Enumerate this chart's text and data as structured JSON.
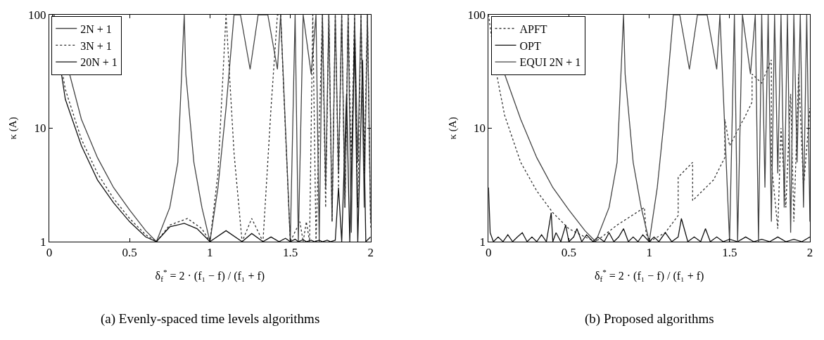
{
  "chart_data": [
    {
      "type": "line",
      "title": "(a) Evenly-spaced time levels algorithms",
      "xlabel": "δ$_{f}$$^{*}$ = 2 · (f₁ − f) / (f₁ + f)",
      "ylabel": "κ (A)",
      "xlim": [
        0,
        2
      ],
      "xticks": [
        0,
        0.5,
        1,
        1.5,
        2
      ],
      "ylim": [
        1,
        100
      ],
      "yticks": [
        1,
        10,
        100
      ],
      "log": "y",
      "legend": "top left",
      "series": [
        {
          "name": "2N + 1",
          "color": "#444444",
          "line_style": "solid",
          "x": [
            0.03,
            0.2,
            0.3,
            0.4,
            0.5,
            0.6,
            0.667,
            0.75,
            0.8,
            0.84,
            0.85,
            0.9,
            0.95,
            1.0,
            1.05,
            1.1,
            1.15,
            1.19,
            1.25,
            1.3,
            1.36,
            1.42,
            1.44,
            1.5,
            1.53,
            1.55,
            1.58,
            1.63,
            1.66,
            1.68,
            1.7,
            1.72,
            1.74,
            1.76,
            1.78,
            1.8,
            1.82,
            1.84,
            1.86,
            1.88,
            1.9,
            1.92,
            1.94,
            1.96,
            1.98,
            2.0
          ],
          "values": [
            100,
            12,
            5.5,
            3,
            1.9,
            1.25,
            1,
            2,
            5,
            100,
            30,
            5,
            2,
            1,
            3,
            15,
            100,
            100,
            33,
            100,
            100,
            33,
            100,
            1,
            100,
            1,
            100,
            30,
            100,
            1,
            100,
            3,
            100,
            1.5,
            100,
            4,
            100,
            2,
            100,
            1.2,
            100,
            5,
            100,
            2,
            100,
            1.5
          ]
        },
        {
          "name": "3N + 1",
          "color": "#333333",
          "line_style": "dotted",
          "x": [
            0.02,
            0.1,
            0.2,
            0.3,
            0.4,
            0.5,
            0.6,
            0.667,
            0.75,
            0.86,
            0.95,
            1.0,
            1.05,
            1.1,
            1.15,
            1.2,
            1.26,
            1.33,
            1.38,
            1.42,
            1.44,
            1.46,
            1.5,
            1.56,
            1.58,
            1.6,
            1.62,
            1.64,
            1.66,
            1.7,
            1.72,
            1.74,
            1.76,
            1.78,
            1.8,
            1.82,
            1.84,
            1.86,
            1.88,
            1.9,
            1.92,
            1.94,
            1.96,
            1.98,
            2.0
          ],
          "values": [
            100,
            22,
            8,
            4,
            2.4,
            1.6,
            1.15,
            1,
            1.4,
            1.6,
            1.3,
            1,
            4,
            100,
            6,
            1,
            1.6,
            1,
            15,
            100,
            100,
            20,
            1,
            1.5,
            1,
            1.5,
            1,
            100,
            1,
            100,
            2,
            100,
            1.5,
            100,
            3,
            100,
            2,
            100,
            5,
            100,
            2,
            100,
            4,
            100,
            1.3
          ]
        },
        {
          "name": "20N + 1",
          "color": "#111111",
          "line_style": "solid",
          "x": [
            0.02,
            0.1,
            0.2,
            0.3,
            0.4,
            0.5,
            0.6,
            0.667,
            0.75,
            0.84,
            0.92,
            1.0,
            1.1,
            1.2,
            1.26,
            1.33,
            1.38,
            1.43,
            1.47,
            1.5,
            1.53,
            1.55,
            1.58,
            1.6,
            1.63,
            1.65,
            1.68,
            1.7,
            1.73,
            1.75,
            1.78,
            1.8,
            1.82,
            1.85,
            1.87,
            1.9,
            1.92,
            1.95,
            1.97,
            2.0
          ],
          "values": [
            100,
            18,
            7,
            3.5,
            2.2,
            1.5,
            1.1,
            1,
            1.35,
            1.45,
            1.3,
            1,
            1.25,
            1,
            1.18,
            1,
            1.1,
            1,
            1.07,
            1,
            1.05,
            1,
            1.04,
            1,
            1.03,
            1,
            1.03,
            1,
            1.03,
            1,
            1.03,
            3,
            1,
            20,
            1,
            60,
            1,
            40,
            1,
            1.1
          ]
        }
      ]
    },
    {
      "type": "line",
      "title": "(b) Proposed algorithms",
      "xlabel": "δ$_{f}$$^{*}$ = 2 · (f₁ − f) / (f₁ + f)",
      "ylabel": "κ (A)",
      "xlim": [
        0,
        2
      ],
      "xticks": [
        0,
        0.5,
        1,
        1.5,
        2
      ],
      "ylim": [
        1,
        100
      ],
      "yticks": [
        1,
        10,
        100
      ],
      "log": "y",
      "legend": "top left",
      "series": [
        {
          "name": "APFT",
          "color": "#333333",
          "line_style": "dotted",
          "x": [
            0.0,
            0.05,
            0.1,
            0.2,
            0.3,
            0.4,
            0.5,
            0.6,
            0.667,
            0.8,
            0.97,
            0.98,
            1.0,
            1.1,
            1.18,
            1.18,
            1.27,
            1.27,
            1.4,
            1.47,
            1.47,
            1.5,
            1.6,
            1.64,
            1.64,
            1.7,
            1.76,
            1.76,
            1.8,
            1.82,
            1.85,
            1.88,
            1.9,
            1.93,
            1.96,
            2.0
          ],
          "values": [
            100,
            30,
            13,
            5,
            2.8,
            1.8,
            1.3,
            1.1,
            1,
            1.4,
            2,
            1.2,
            1,
            1.2,
            1.7,
            3.7,
            5,
            2.3,
            3.5,
            5.5,
            12,
            7,
            13,
            17,
            30,
            25,
            40,
            5,
            1.3,
            10,
            2,
            20,
            1.5,
            30,
            3,
            15
          ]
        },
        {
          "name": "OPT",
          "color": "#111111",
          "line_style": "solid",
          "x": [
            0.0,
            0.01,
            0.03,
            0.06,
            0.09,
            0.12,
            0.15,
            0.18,
            0.21,
            0.24,
            0.27,
            0.3,
            0.33,
            0.36,
            0.39,
            0.4,
            0.42,
            0.45,
            0.48,
            0.5,
            0.53,
            0.55,
            0.58,
            0.61,
            0.65,
            0.68,
            0.72,
            0.75,
            0.78,
            0.81,
            0.84,
            0.87,
            0.9,
            0.93,
            0.96,
            1.0,
            1.03,
            1.06,
            1.1,
            1.14,
            1.18,
            1.2,
            1.24,
            1.28,
            1.32,
            1.35,
            1.38,
            1.42,
            1.46,
            1.5,
            1.55,
            1.6,
            1.65,
            1.7,
            1.75,
            1.8,
            1.85,
            1.9,
            1.95,
            2.0
          ],
          "values": [
            3,
            1.2,
            1.0,
            1.1,
            1.0,
            1.15,
            1.0,
            1.1,
            1.2,
            1.0,
            1.1,
            1.0,
            1.15,
            1.0,
            1.8,
            1.0,
            1.2,
            1.0,
            1.4,
            1.0,
            1.1,
            1.3,
            1.0,
            1.15,
            1.0,
            1.1,
            1.0,
            1.2,
            1.0,
            1.1,
            1.3,
            1.0,
            1.1,
            1.0,
            1.15,
            1.0,
            1.1,
            1.0,
            1.2,
            1.0,
            1.1,
            1.6,
            1.0,
            1.1,
            1.0,
            1.3,
            1.0,
            1.1,
            1.0,
            1.05,
            1.0,
            1.1,
            1.0,
            1.05,
            1.0,
            1.1,
            1.0,
            1.05,
            1.0,
            1.1
          ]
        },
        {
          "name": "EQUI 2N + 1",
          "color": "#444444",
          "line_style": "solid",
          "x": [
            0.1,
            0.2,
            0.3,
            0.4,
            0.5,
            0.6,
            0.667,
            0.75,
            0.8,
            0.84,
            0.85,
            0.9,
            0.95,
            1.0,
            1.05,
            1.1,
            1.15,
            1.19,
            1.25,
            1.3,
            1.36,
            1.42,
            1.44,
            1.5,
            1.53,
            1.55,
            1.58,
            1.63,
            1.66,
            1.68,
            1.7,
            1.72,
            1.74,
            1.76,
            1.78,
            1.8,
            1.82,
            1.84,
            1.86,
            1.88,
            1.9,
            1.92,
            1.94,
            1.96,
            1.98,
            2.0
          ],
          "values": [
            30,
            12,
            5.5,
            3,
            1.9,
            1.25,
            1,
            2,
            5,
            100,
            30,
            5,
            2,
            1,
            3,
            15,
            100,
            100,
            33,
            100,
            100,
            33,
            100,
            1,
            100,
            1,
            100,
            30,
            100,
            1,
            100,
            3,
            100,
            1.5,
            100,
            4,
            100,
            2,
            100,
            1.2,
            100,
            5,
            100,
            2,
            100,
            1.5
          ]
        }
      ]
    }
  ]
}
